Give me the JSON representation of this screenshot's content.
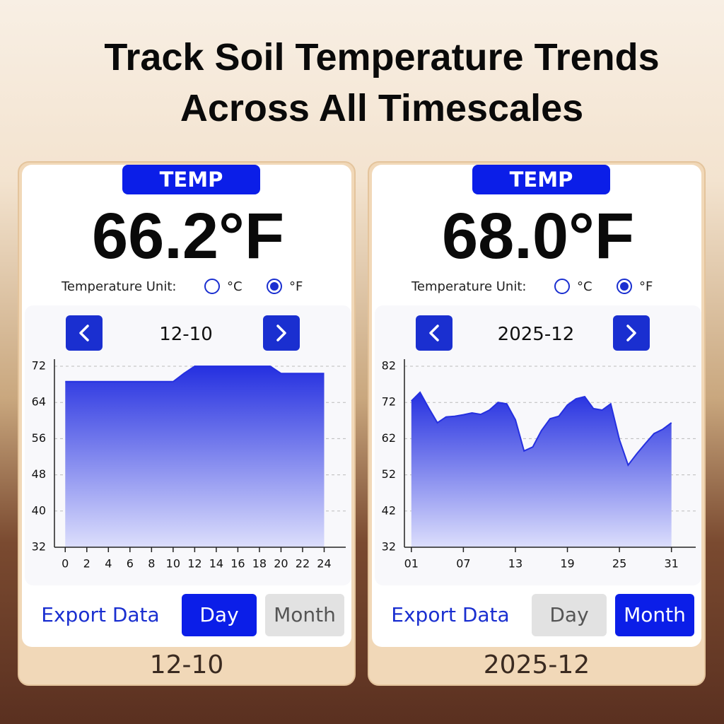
{
  "headline": [
    "Track Soil Temperature Trends",
    "Across All Timescales"
  ],
  "panels": [
    {
      "badge": "TEMP",
      "reading": "66.2°F",
      "unit_label": "Temperature Unit:",
      "unit_options": [
        "°C",
        "°F"
      ],
      "selected_unit": 1,
      "period": "12-10",
      "chart_data": {
        "type": "area",
        "color": "#2530e0",
        "x": [
          0,
          1,
          2,
          3,
          4,
          5,
          6,
          7,
          8,
          9,
          10,
          11,
          12,
          13,
          14,
          15,
          16,
          17,
          18,
          19,
          20,
          21,
          22,
          23,
          24
        ],
        "values": [
          68.6,
          68.6,
          68.6,
          68.6,
          68.6,
          68.6,
          68.6,
          68.6,
          68.6,
          68.6,
          68.6,
          70.4,
          72,
          72,
          72,
          72,
          72,
          72,
          72,
          72,
          70.4,
          70.4,
          70.4,
          70.4,
          70.4
        ],
        "xlim": [
          -1,
          26
        ],
        "xticks": [
          0,
          2,
          4,
          6,
          8,
          10,
          12,
          14,
          16,
          18,
          20,
          22,
          24
        ],
        "ylim": [
          32,
          72
        ],
        "yticks": [
          32,
          40,
          48,
          56,
          64,
          72
        ],
        "grid": true
      },
      "buttons": [
        "Export Data",
        "Day",
        "Month"
      ],
      "active_button": 1,
      "footer": "12-10"
    },
    {
      "badge": "TEMP",
      "reading": "68.0°F",
      "unit_label": "Temperature Unit:",
      "unit_options": [
        "°C",
        "°F"
      ],
      "selected_unit": 1,
      "period": "2025-12",
      "chart_data": {
        "type": "area",
        "color": "#2530e0",
        "x": [
          1,
          2,
          3,
          4,
          5,
          6,
          7,
          8,
          9,
          10,
          11,
          12,
          13,
          14,
          15,
          16,
          17,
          18,
          19,
          20,
          21,
          22,
          23,
          24,
          25,
          26,
          27,
          28,
          29,
          30,
          31
        ],
        "values": [
          72.4,
          74.8,
          70.5,
          66.4,
          68,
          68.2,
          68.6,
          69.1,
          68.7,
          69.9,
          72,
          71.6,
          67.2,
          58.6,
          59.7,
          64.2,
          67.5,
          68.2,
          71.3,
          73,
          73.6,
          70.3,
          69.9,
          71.6,
          61.7,
          54.7,
          57.8,
          60.7,
          63.4,
          64.6,
          66.4
        ],
        "xlim": [
          0.2,
          33.8
        ],
        "xticks": [
          {
            "value": 1,
            "label": "01"
          },
          {
            "value": 7,
            "label": "07"
          },
          13,
          19,
          25,
          31
        ],
        "ylim": [
          32,
          82
        ],
        "yticks": [
          32,
          42,
          52,
          62,
          72,
          82
        ],
        "grid": true
      },
      "buttons": [
        "Export Data",
        "Day",
        "Month"
      ],
      "active_button": 2,
      "footer": "2025-12"
    }
  ]
}
